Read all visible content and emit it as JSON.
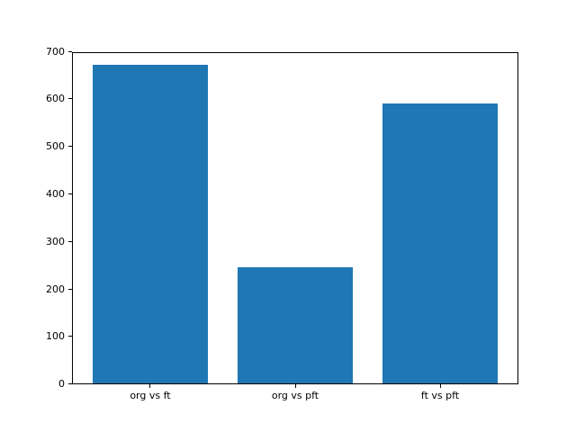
{
  "chart_data": {
    "type": "bar",
    "categories": [
      "org vs ft",
      "org vs pft",
      "ft vs pft"
    ],
    "values": [
      670,
      245,
      590
    ],
    "title": "",
    "xlabel": "",
    "ylabel": "",
    "ylim": [
      0,
      700
    ],
    "yticks": [
      0,
      100,
      200,
      300,
      400,
      500,
      600,
      700
    ],
    "ytick_labels": [
      "0",
      "100",
      "200",
      "300",
      "400",
      "500",
      "600",
      "700"
    ],
    "bar_color": "#1f77b4",
    "axis_color": "#000000",
    "background_color": "#ffffff",
    "grid": false,
    "legend": null,
    "bar_width_fraction": 0.8
  }
}
